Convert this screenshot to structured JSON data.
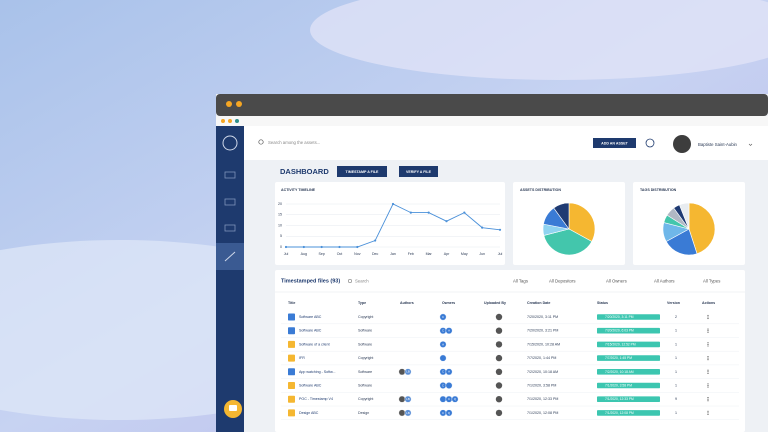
{
  "search_placeholder": "Search among the assets...",
  "header": {
    "add_button": "ADD AN ASSET",
    "user_name": "Baptiste Saint-Aubin"
  },
  "page_title": "DASHBOARD",
  "actions": [
    "TIMESTAMP A FILE",
    "VERIFY A FILE"
  ],
  "chart_data": [
    {
      "type": "line",
      "title": "ACTIVITY TIMELINE",
      "categories": [
        "Jul",
        "Aug",
        "Sep",
        "Oct",
        "Nov",
        "Dec",
        "Jan",
        "Feb",
        "Mar",
        "Apr",
        "May",
        "Jun",
        "Jul"
      ],
      "series": [
        {
          "color": "#4a90d9",
          "values": [
            0,
            0,
            0,
            0,
            0,
            3,
            20,
            16,
            16,
            12,
            16,
            9,
            8
          ]
        }
      ],
      "ylim": [
        0,
        20
      ],
      "yticks": [
        0,
        5,
        10,
        15,
        20
      ],
      "grid": true
    },
    {
      "type": "pie",
      "title": "ASSETS DISTRIBUTION",
      "values": [
        33,
        38,
        7,
        12,
        10
      ],
      "colors": [
        "#f5b731",
        "#43c6ac",
        "#8fd3f0",
        "#3a7bd5",
        "#1f3b73"
      ]
    },
    {
      "type": "pie",
      "title": "TAGS DISTRIBUTION",
      "values": [
        45,
        22,
        12,
        5,
        6,
        4,
        6
      ],
      "colors": [
        "#f5b731",
        "#3a7bd5",
        "#6fb7e9",
        "#43c6ac",
        "#b0b8c4",
        "#1f3b73",
        "#e8ecf0"
      ]
    }
  ],
  "table": {
    "title": "Timestamped files (93)",
    "search": "Search",
    "filters": [
      "All Tags",
      "All Depositors",
      "All Owners",
      "All Authors",
      "All Types"
    ],
    "columns": [
      "Title",
      "Type",
      "Authors",
      "Owners",
      "Uploaded By",
      "Creation Date",
      "Status",
      "Version",
      "Actions"
    ],
    "icon_colors": [
      "#3a7bd5",
      "#3a7bd5",
      "#f5b731",
      "#f5b731",
      "#3a7bd5",
      "#f5b731",
      "#f5b731",
      "#f5b731"
    ],
    "rows": [
      {
        "title": "Software ABC",
        "type": "Copyright",
        "authors": [],
        "owners": [
          "C"
        ],
        "created": "7/20/2020, 3:11 PM",
        "status": "7/20/2020, 3:11 PM",
        "version": "2"
      },
      {
        "title": "Software ABC",
        "type": "Software",
        "authors": [],
        "owners": [
          "C",
          "A"
        ],
        "created": "7/20/2020, 3:21 PM",
        "status": "7/20/2020, 6:03 PM",
        "version": "1"
      },
      {
        "title": "Software of a client",
        "type": "Software",
        "authors": [],
        "owners": [
          "A"
        ],
        "created": "7/15/2020, 10:28 AM",
        "status": "7/15/2020, 12:52 PM",
        "version": "1"
      },
      {
        "title": "IFR",
        "type": "Copyright",
        "authors": [],
        "owners": [
          ""
        ],
        "created": "7/7/2020, 1:44 PM",
        "status": "7/7/2020, 1:45 PM",
        "version": "1"
      },
      {
        "title": "App watching - Softw...",
        "type": "Software",
        "authors": [
          "",
          "LB"
        ],
        "owners": [
          "C",
          "A"
        ],
        "created": "7/2/2020, 10:18 AM",
        "status": "7/2/2020, 10:18 AM",
        "version": "1"
      },
      {
        "title": "Software ABC",
        "type": "Software",
        "authors": [],
        "owners": [
          "C",
          ""
        ],
        "created": "7/1/2020, 3:58 PM",
        "status": "7/1/2020, 3:58 PM",
        "version": "1"
      },
      {
        "title": "POC - Timestamp V4",
        "type": "Copyright",
        "authors": [
          "",
          "LB"
        ],
        "owners": [
          "",
          "C",
          "Q"
        ],
        "created": "7/1/2020, 12:33 PM",
        "status": "7/1/2020, 12:33 PM",
        "version": "9"
      },
      {
        "title": "Design ABC",
        "type": "Design",
        "authors": [
          "",
          "LB"
        ],
        "owners": [
          "C",
          "Q"
        ],
        "created": "7/1/2020, 12:08 PM",
        "status": "7/1/2020, 12:08 PM",
        "version": "1"
      }
    ]
  }
}
